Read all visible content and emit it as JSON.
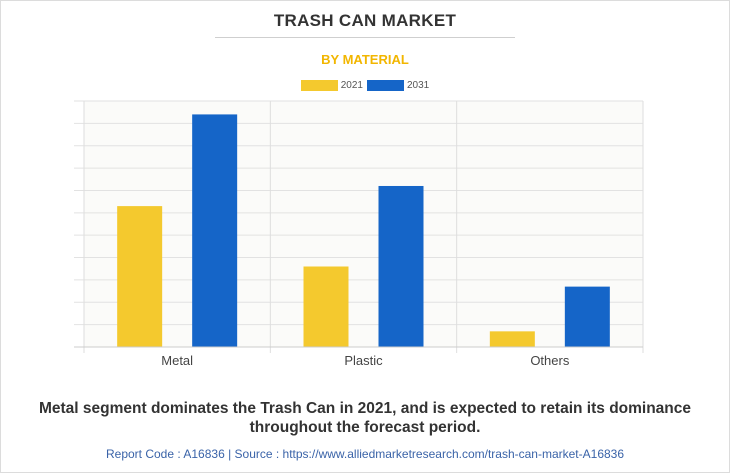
{
  "header": {
    "title": "TRASH CAN MARKET",
    "subtitle": "BY MATERIAL"
  },
  "legend": {
    "items": [
      {
        "label": "2021",
        "color": "#f4c92e"
      },
      {
        "label": "2031",
        "color": "#1565c8"
      }
    ]
  },
  "chart_data": {
    "type": "bar",
    "title": "TRASH CAN MARKET",
    "subtitle": "BY MATERIAL",
    "categories": [
      "Metal",
      "Plastic",
      "Others"
    ],
    "series": [
      {
        "name": "2021",
        "color": "#f4c92e",
        "values": [
          6.3,
          3.6,
          0.7
        ]
      },
      {
        "name": "2031",
        "color": "#1565c8",
        "values": [
          10.4,
          7.2,
          2.7
        ]
      }
    ],
    "ylim": [
      0,
      11
    ],
    "grid": true,
    "legend_position": "top-center"
  },
  "caption": "Metal segment dominates the Trash Can in 2021, and is expected to retain its dominance throughout the forecast period.",
  "footer": {
    "text": "Report Code : A16836  |  Source : https://www.alliedmarketresearch.com/trash-can-market-A16836"
  }
}
